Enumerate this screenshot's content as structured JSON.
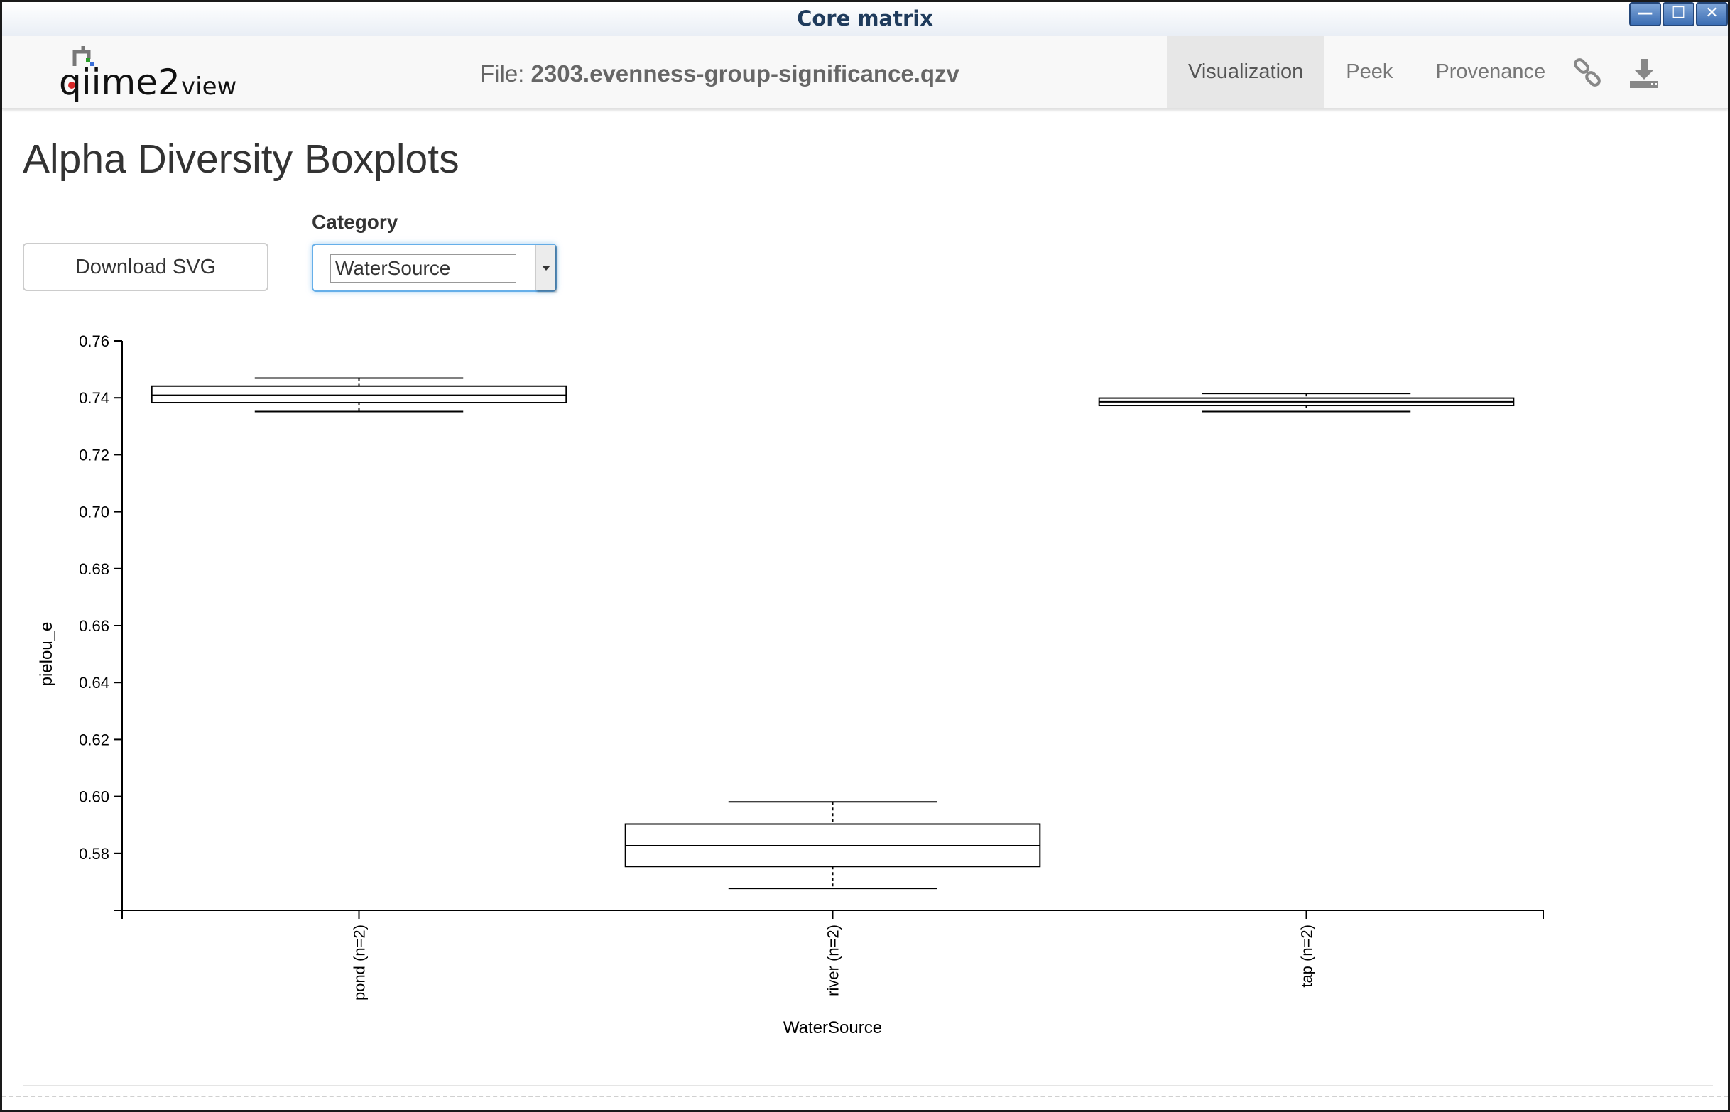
{
  "window": {
    "title": "Core matrix"
  },
  "window_controls": {
    "minimize": "—",
    "maximize": "☐",
    "close": "✕"
  },
  "navbar": {
    "logo_text": "qiime2view",
    "file_prefix": "File: ",
    "file_name": "2303.evenness-group-significance.qzv",
    "tabs": [
      {
        "label": "Visualization",
        "active": true
      },
      {
        "label": "Peek",
        "active": false
      },
      {
        "label": "Provenance",
        "active": false
      }
    ],
    "icons": [
      "link-icon",
      "download-icon"
    ]
  },
  "page": {
    "title": "Alpha Diversity Boxplots",
    "download_button": "Download SVG",
    "category_label": "Category",
    "category_value": "WaterSource"
  },
  "chart_data": {
    "type": "boxplot",
    "xlabel": "WaterSource",
    "ylabel": "pielou_e",
    "ylim": [
      0.56,
      0.76
    ],
    "yticks": [
      "0.76",
      "0.74",
      "0.72",
      "0.70",
      "0.68",
      "0.66",
      "0.64",
      "0.62",
      "0.60",
      "0.58"
    ],
    "ytick_values": [
      0.76,
      0.74,
      0.72,
      0.7,
      0.68,
      0.66,
      0.64,
      0.62,
      0.6,
      0.58
    ],
    "categories": [
      "pond (n=2)",
      "river (n=2)",
      "tap (n=2)"
    ],
    "boxes": [
      {
        "category": "pond (n=2)",
        "min": 0.7352,
        "q1": 0.7383,
        "median": 0.7409,
        "q3": 0.7441,
        "max": 0.7469
      },
      {
        "category": "river (n=2)",
        "min": 0.5677,
        "q1": 0.5754,
        "median": 0.5827,
        "q3": 0.5903,
        "max": 0.5981
      },
      {
        "category": "tap (n=2)",
        "min": 0.7352,
        "q1": 0.7373,
        "median": 0.7386,
        "q3": 0.7399,
        "max": 0.7415
      }
    ]
  }
}
